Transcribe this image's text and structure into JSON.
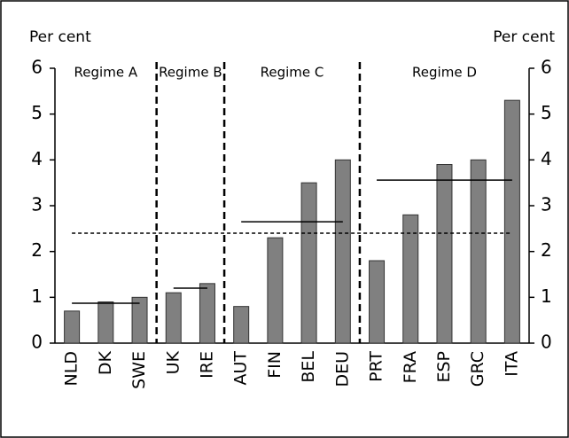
{
  "chart_data": {
    "type": "bar",
    "y_label": "Per cent",
    "y2_label": "Per cent",
    "groups": [
      {
        "label": "Regime A",
        "categories": [
          "NLD",
          "DK",
          "SWE"
        ],
        "values": [
          0.7,
          0.9,
          1.0
        ],
        "average": 0.87
      },
      {
        "label": "Regime B",
        "categories": [
          "UK",
          "IRE"
        ],
        "values": [
          1.1,
          1.3
        ],
        "average": 1.2
      },
      {
        "label": "Regime C",
        "categories": [
          "AUT",
          "FIN",
          "BEL",
          "DEU"
        ],
        "values": [
          0.8,
          2.3,
          3.5,
          4.0
        ],
        "average": 2.65
      },
      {
        "label": "Regime D",
        "categories": [
          "PRT",
          "FRA",
          "ESP",
          "GRC",
          "ITA"
        ],
        "values": [
          1.8,
          2.8,
          3.9,
          4.0,
          5.3
        ],
        "average": 3.56
      }
    ],
    "overall_average": 2.4,
    "color": "#808080",
    "ylim": [
      0,
      6
    ],
    "yticks": [
      0,
      1,
      2,
      3,
      4,
      5,
      6
    ],
    "y2lim": [
      0,
      6
    ],
    "y2ticks": [
      0,
      1,
      2,
      3,
      4,
      5,
      6
    ]
  }
}
